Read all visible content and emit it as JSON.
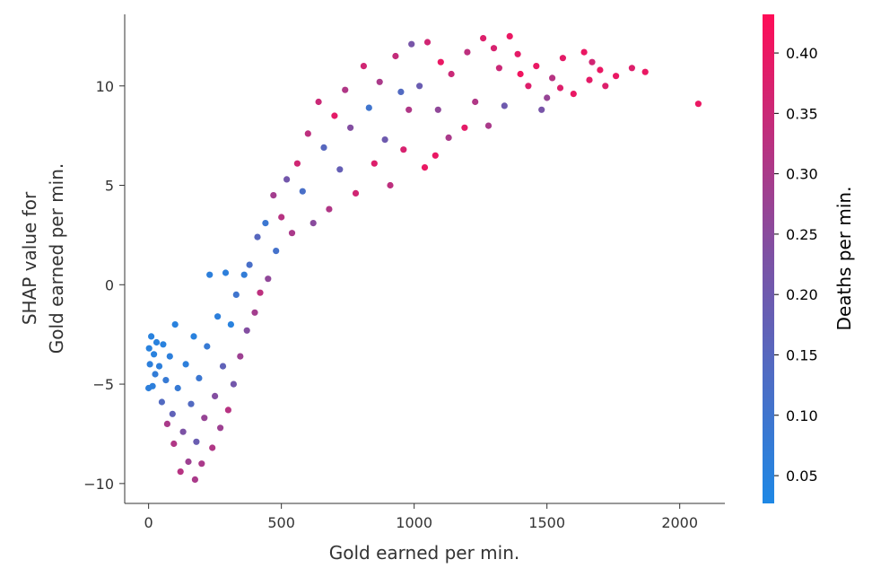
{
  "chart_data": {
    "type": "scatter",
    "title": "",
    "xlabel": "Gold earned per min.",
    "ylabel_lines": [
      "SHAP value for",
      "Gold earned per min."
    ],
    "xlim": [
      -90,
      2170
    ],
    "ylim": [
      -11,
      13.6
    ],
    "x_ticks": [
      0,
      500,
      1000,
      1500,
      2000
    ],
    "x_tick_labels": [
      "0",
      "500",
      "1000",
      "1500",
      "2000"
    ],
    "y_ticks": [
      -10,
      -5,
      0,
      5,
      10
    ],
    "y_tick_labels": [
      "−10",
      "−5",
      "0",
      "5",
      "10"
    ],
    "grid": false,
    "colorbar": {
      "label": "Deaths per min.",
      "range": [
        0.027,
        0.432
      ],
      "ticks": [
        0.05,
        0.1,
        0.15,
        0.2,
        0.25,
        0.3,
        0.35,
        0.4
      ],
      "tick_labels": [
        "0.05",
        "0.10",
        "0.15",
        "0.20",
        "0.25",
        "0.30",
        "0.35",
        "0.40"
      ],
      "colors": [
        "#1e88e5",
        "#7c52a5",
        "#ff0d57"
      ]
    },
    "points": [
      [
        2070,
        9.1,
        0.4
      ],
      [
        1870,
        10.7,
        0.4
      ],
      [
        1820,
        10.9,
        0.38
      ],
      [
        1760,
        10.5,
        0.4
      ],
      [
        1720,
        10.0,
        0.38
      ],
      [
        1700,
        10.8,
        0.4
      ],
      [
        1670,
        11.2,
        0.36
      ],
      [
        1660,
        10.3,
        0.39
      ],
      [
        1640,
        11.7,
        0.4
      ],
      [
        1600,
        9.6,
        0.4
      ],
      [
        1560,
        11.4,
        0.39
      ],
      [
        1550,
        9.9,
        0.38
      ],
      [
        1520,
        10.4,
        0.32
      ],
      [
        1500,
        9.4,
        0.27
      ],
      [
        1480,
        8.8,
        0.22
      ],
      [
        1460,
        11.0,
        0.4
      ],
      [
        1430,
        10.0,
        0.38
      ],
      [
        1400,
        10.6,
        0.41
      ],
      [
        1390,
        11.6,
        0.39
      ],
      [
        1360,
        12.5,
        0.4
      ],
      [
        1340,
        9.0,
        0.2
      ],
      [
        1320,
        10.9,
        0.35
      ],
      [
        1300,
        11.9,
        0.37
      ],
      [
        1280,
        8.0,
        0.3
      ],
      [
        1260,
        12.4,
        0.38
      ],
      [
        1230,
        9.2,
        0.31
      ],
      [
        1200,
        11.7,
        0.33
      ],
      [
        1190,
        7.9,
        0.39
      ],
      [
        1140,
        10.6,
        0.35
      ],
      [
        1130,
        7.4,
        0.3
      ],
      [
        1100,
        11.2,
        0.4
      ],
      [
        1090,
        8.8,
        0.26
      ],
      [
        1080,
        6.5,
        0.4
      ],
      [
        1050,
        12.2,
        0.36
      ],
      [
        1040,
        5.9,
        0.4
      ],
      [
        1020,
        10.0,
        0.19
      ],
      [
        990,
        12.1,
        0.22
      ],
      [
        980,
        8.8,
        0.31
      ],
      [
        960,
        6.8,
        0.37
      ],
      [
        950,
        9.7,
        0.14
      ],
      [
        930,
        11.5,
        0.34
      ],
      [
        910,
        5.0,
        0.33
      ],
      [
        890,
        7.3,
        0.2
      ],
      [
        870,
        10.2,
        0.3
      ],
      [
        850,
        6.1,
        0.38
      ],
      [
        830,
        8.9,
        0.1
      ],
      [
        810,
        11.0,
        0.36
      ],
      [
        780,
        4.6,
        0.36
      ],
      [
        760,
        7.9,
        0.24
      ],
      [
        740,
        9.8,
        0.31
      ],
      [
        720,
        5.8,
        0.18
      ],
      [
        700,
        8.5,
        0.39
      ],
      [
        680,
        3.8,
        0.31
      ],
      [
        660,
        6.9,
        0.15
      ],
      [
        640,
        9.2,
        0.35
      ],
      [
        620,
        3.1,
        0.25
      ],
      [
        600,
        7.6,
        0.33
      ],
      [
        580,
        4.7,
        0.12
      ],
      [
        560,
        6.1,
        0.36
      ],
      [
        540,
        2.6,
        0.3
      ],
      [
        520,
        5.3,
        0.21
      ],
      [
        500,
        3.4,
        0.32
      ],
      [
        480,
        1.7,
        0.11
      ],
      [
        470,
        4.5,
        0.29
      ],
      [
        450,
        0.3,
        0.26
      ],
      [
        440,
        3.1,
        0.09
      ],
      [
        420,
        -0.4,
        0.33
      ],
      [
        410,
        2.4,
        0.15
      ],
      [
        400,
        -1.4,
        0.29
      ],
      [
        380,
        1.0,
        0.12
      ],
      [
        370,
        -2.3,
        0.24
      ],
      [
        360,
        0.5,
        0.07
      ],
      [
        345,
        -3.6,
        0.28
      ],
      [
        330,
        -0.5,
        0.1
      ],
      [
        320,
        -5.0,
        0.21
      ],
      [
        310,
        -2.0,
        0.05
      ],
      [
        300,
        -6.3,
        0.32
      ],
      [
        290,
        0.6,
        0.06
      ],
      [
        280,
        -4.1,
        0.17
      ],
      [
        270,
        -7.2,
        0.28
      ],
      [
        260,
        -1.6,
        0.06
      ],
      [
        250,
        -5.6,
        0.24
      ],
      [
        240,
        -8.2,
        0.31
      ],
      [
        230,
        0.5,
        0.06
      ],
      [
        220,
        -3.1,
        0.08
      ],
      [
        210,
        -6.7,
        0.27
      ],
      [
        200,
        -9.0,
        0.3
      ],
      [
        190,
        -4.7,
        0.09
      ],
      [
        180,
        -7.9,
        0.19
      ],
      [
        175,
        -9.8,
        0.3
      ],
      [
        170,
        -2.6,
        0.05
      ],
      [
        160,
        -6.0,
        0.14
      ],
      [
        150,
        -8.9,
        0.28
      ],
      [
        140,
        -4.0,
        0.06
      ],
      [
        130,
        -7.4,
        0.23
      ],
      [
        120,
        -9.4,
        0.32
      ],
      [
        110,
        -5.2,
        0.08
      ],
      [
        100,
        -2.0,
        0.05
      ],
      [
        95,
        -8.0,
        0.31
      ],
      [
        90,
        -6.5,
        0.17
      ],
      [
        80,
        -3.6,
        0.06
      ],
      [
        70,
        -7.0,
        0.3
      ],
      [
        65,
        -4.8,
        0.08
      ],
      [
        55,
        -3.0,
        0.05
      ],
      [
        50,
        -5.9,
        0.14
      ],
      [
        40,
        -4.1,
        0.06
      ],
      [
        30,
        -2.9,
        0.05
      ],
      [
        25,
        -4.5,
        0.07
      ],
      [
        20,
        -3.5,
        0.05
      ],
      [
        15,
        -5.1,
        0.06
      ],
      [
        10,
        -2.6,
        0.05
      ],
      [
        5,
        -4.0,
        0.06
      ],
      [
        2,
        -3.2,
        0.05
      ],
      [
        0,
        -5.2,
        0.06
      ]
    ]
  }
}
